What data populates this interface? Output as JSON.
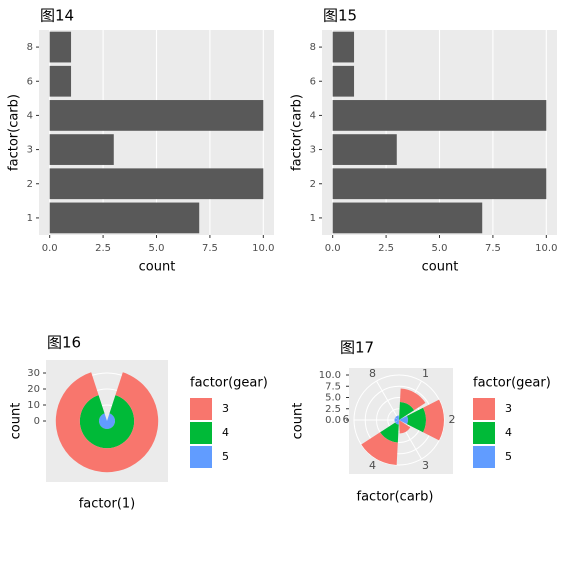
{
  "chart_data": [
    {
      "type": "bar",
      "orientation": "horizontal",
      "title": "图14",
      "xlabel": "count",
      "ylabel": "factor(carb)",
      "categories": [
        "1",
        "2",
        "3",
        "4",
        "6",
        "8"
      ],
      "values": [
        7,
        10,
        3,
        10,
        1,
        1
      ],
      "color": "#595959",
      "xlim": [
        -0.5,
        10.5
      ],
      "xticks": [
        {
          "value": 0,
          "label": "0.0"
        },
        2.5,
        {
          "value": 5,
          "label": "5.0"
        },
        7.5,
        {
          "value": 10,
          "label": "10.0"
        }
      ],
      "grid": true
    },
    {
      "type": "bar",
      "orientation": "horizontal",
      "title": "图15",
      "xlabel": "count",
      "ylabel": "factor(carb)",
      "categories": [
        "1",
        "2",
        "3",
        "4",
        "6",
        "8"
      ],
      "values": [
        7,
        10,
        3,
        10,
        1,
        1
      ],
      "color": "#595959",
      "xlim": [
        -0.5,
        10.5
      ],
      "xticks": [
        {
          "value": 0,
          "label": "0.0"
        },
        2.5,
        {
          "value": 5,
          "label": "5.0"
        },
        7.5,
        {
          "value": 10,
          "label": "10.0"
        }
      ],
      "grid": true
    },
    {
      "type": "polar",
      "title": "图16",
      "xlabel": "factor(1)",
      "ylabel": "count",
      "legend_title": "factor(gear)",
      "categories": [
        null
      ],
      "series": [
        {
          "name": "3",
          "color": "#F8766D",
          "values": [
            15
          ]
        },
        {
          "name": "4",
          "color": "#00BA38",
          "values": [
            12
          ]
        },
        {
          "name": "5",
          "color": "#619CFF",
          "values": [
            5
          ]
        }
      ],
      "ylim": [
        0,
        32
      ],
      "yticks": [
        0,
        10,
        20,
        30
      ],
      "grid": true
    },
    {
      "type": "polar",
      "title": "图17",
      "xlabel": "factor(carb)",
      "ylabel": "count",
      "legend_title": "factor(gear)",
      "categories": [
        "1",
        "2",
        "3",
        "4",
        "6",
        "8"
      ],
      "series": [
        {
          "name": "3",
          "color": "#F8766D",
          "values": [
            3,
            4,
            3,
            5,
            0,
            0
          ]
        },
        {
          "name": "4",
          "color": "#00BA38",
          "values": [
            4,
            4,
            0,
            4,
            0,
            0
          ]
        },
        {
          "name": "5",
          "color": "#619CFF",
          "values": [
            0,
            2,
            0,
            1,
            1,
            1
          ]
        }
      ],
      "ylim": [
        0,
        10
      ],
      "yticks": [
        {
          "value": 0,
          "label": "0.0"
        },
        2.5,
        {
          "value": 5,
          "label": "5.0"
        },
        7.5,
        {
          "value": 10,
          "label": "10.0"
        }
      ],
      "grid": true
    }
  ]
}
